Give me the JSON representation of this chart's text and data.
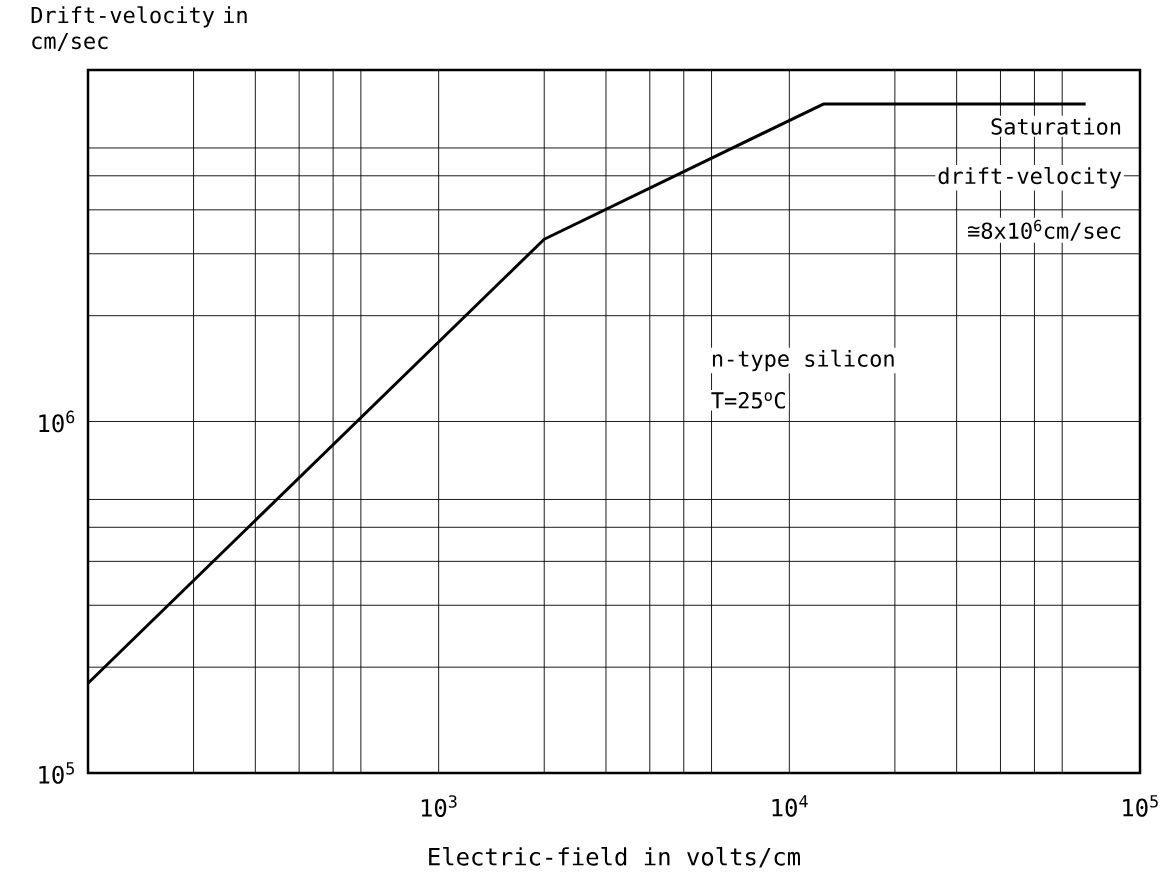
{
  "chart_data": {
    "type": "line",
    "xlabel": "Electric-field in volts/cm",
    "ylabel": "Drift-velocity in cm/sec",
    "log": "xy",
    "grid": true,
    "xlim": [
      100,
      100000
    ],
    "ylim": [
      100000,
      10000000
    ],
    "xticks": [
      {
        "value": 1000,
        "label": "10$^{3}$"
      },
      {
        "value": 10000,
        "label": "10$^{4}$"
      },
      {
        "value": 100000,
        "label": "10$^{5}$"
      }
    ],
    "yticks": [
      {
        "value": 100000,
        "label": "10$^{5}$"
      },
      {
        "value": 1000000,
        "label": "10$^{6}$"
      }
    ],
    "x": [
      100,
      2000,
      12500,
      70000
    ],
    "series": [
      {
        "color": "#000000",
        "values": [
          180000,
          3300000,
          8000000,
          8000000
        ]
      }
    ],
    "annotations": [
      "Saturation",
      "drift-velocity",
      "≅8x10$^{6}$cm/sec",
      "n-type silicon",
      "T=25$^{o}$C"
    ]
  }
}
